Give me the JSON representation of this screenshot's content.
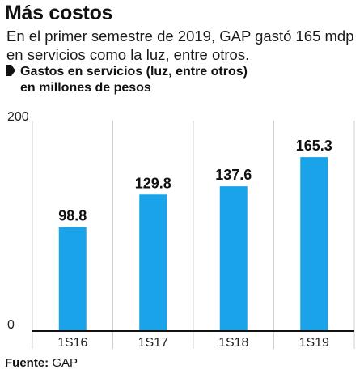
{
  "header": {
    "title": "Más costos",
    "subtitle": "En el primer semestre de 2019, GAP gastó 165 mdp en servicios como la luz, entre otros.",
    "series_label_line1": "Gastos en servicios (luz, entre otros)",
    "series_label_line2": "en millones de pesos"
  },
  "footer": {
    "source_label": "Fuente:",
    "source_value": "GAP"
  },
  "chart_data": {
    "type": "bar",
    "categories": [
      "1S16",
      "1S17",
      "1S18",
      "1S19"
    ],
    "values": [
      98.8,
      129.8,
      137.6,
      165.3
    ],
    "value_labels": [
      "98.8",
      "129.8",
      "137.6",
      "165.3"
    ],
    "ylim": [
      0,
      200
    ],
    "yticks": [
      "0",
      "200"
    ],
    "bar_color": "#1aa3e8",
    "grid": "vertical separators",
    "xlabel": "",
    "ylabel": ""
  }
}
